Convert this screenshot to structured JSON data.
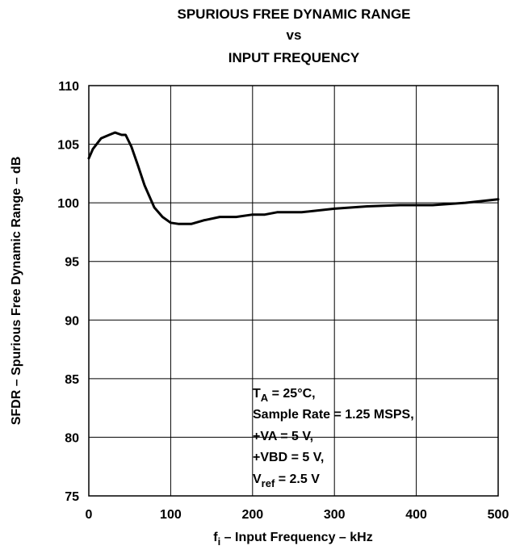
{
  "chart_data": {
    "type": "line",
    "title": [
      "SPURIOUS FREE DYNAMIC RANGE",
      "vs",
      "INPUT FREQUENCY"
    ],
    "xlabel": {
      "main": "f",
      "sub": "i",
      "rest": " – Input Frequency – kHz"
    },
    "ylabel": "SFDR – Spurious Free Dynamic Range – dB",
    "xlim": [
      0,
      500
    ],
    "ylim": [
      75,
      110
    ],
    "x_ticks": [
      0,
      100,
      200,
      300,
      400,
      500
    ],
    "y_ticks": [
      75,
      80,
      85,
      90,
      95,
      100,
      105,
      110
    ],
    "grid": true,
    "series": [
      {
        "x": [
          0,
          5,
          15,
          25,
          32,
          40,
          45,
          52,
          60,
          68,
          80,
          90,
          100,
          110,
          125,
          140,
          160,
          180,
          200,
          215,
          230,
          260,
          300,
          340,
          380,
          420,
          460,
          500
        ],
        "y": [
          103.8,
          104.6,
          105.5,
          105.8,
          106.0,
          105.8,
          105.8,
          104.8,
          103.2,
          101.5,
          99.6,
          98.8,
          98.3,
          98.2,
          98.2,
          98.5,
          98.8,
          98.8,
          99.0,
          99.0,
          99.2,
          99.2,
          99.5,
          99.7,
          99.8,
          99.8,
          100.0,
          100.3
        ]
      }
    ],
    "annotation": [
      {
        "main": "T",
        "sub": "A",
        "rest": " = 25°C,"
      },
      {
        "main": "Sample Rate = 1.25 MSPS,",
        "sub": "",
        "rest": ""
      },
      {
        "main": "+VA = 5 V,",
        "sub": "",
        "rest": ""
      },
      {
        "main": "+VBD = 5 V,",
        "sub": "",
        "rest": ""
      },
      {
        "main": "V",
        "sub": "ref",
        "rest": " = 2.5 V"
      }
    ]
  }
}
